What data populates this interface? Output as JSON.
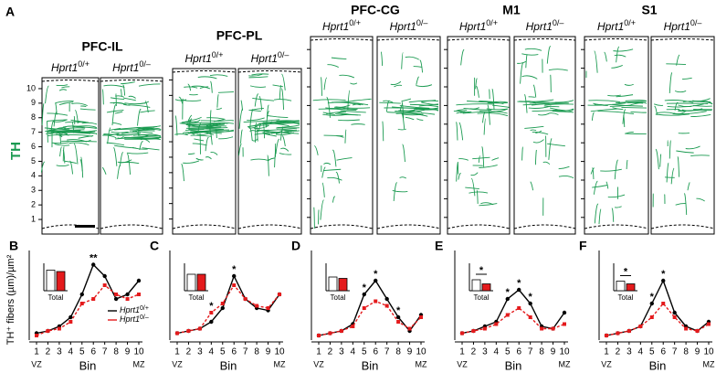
{
  "panel_a": {
    "label": "A",
    "side_label": "TH",
    "bins": [
      1,
      2,
      3,
      4,
      5,
      6,
      7,
      8,
      9,
      10
    ],
    "regions": [
      {
        "title": "PFC-IL",
        "genotypes": [
          {
            "gene": "Hprt1",
            "allele": "0/+"
          },
          {
            "gene": "Hprt1",
            "allele": "0/–"
          }
        ]
      },
      {
        "title": "PFC-PL",
        "genotypes": [
          {
            "gene": "Hprt1",
            "allele": "0/+"
          },
          {
            "gene": "Hprt1",
            "allele": "0/–"
          }
        ]
      },
      {
        "title": "PFC-CG",
        "genotypes": [
          {
            "gene": "Hprt1",
            "allele": "0/+"
          },
          {
            "gene": "Hprt1",
            "allele": "0/–"
          }
        ]
      },
      {
        "title": "M1",
        "genotypes": [
          {
            "gene": "Hprt1",
            "allele": "0/+"
          },
          {
            "gene": "Hprt1",
            "allele": "0/–"
          }
        ]
      },
      {
        "title": "S1",
        "genotypes": [
          {
            "gene": "Hprt1",
            "allele": "0/+"
          },
          {
            "gene": "Hprt1",
            "allele": "0/–"
          }
        ]
      }
    ]
  },
  "y_label": "TH⁺ fibers (µm)/µm²",
  "chart_data": [
    {
      "type": "line",
      "label": "B",
      "x_label": "Bin",
      "categories": [
        1,
        2,
        3,
        4,
        5,
        6,
        7,
        8,
        9,
        10
      ],
      "ends": [
        "VZ",
        "MZ"
      ],
      "ylim": [
        0,
        0.18
      ],
      "series": [
        {
          "name": "Hprt1",
          "allele": "0/+",
          "color": "#000000",
          "values": [
            0.015,
            0.02,
            0.03,
            0.05,
            0.1,
            0.165,
            0.14,
            0.09,
            0.1,
            0.13
          ]
        },
        {
          "name": "Hprt1",
          "allele": "0/–",
          "color": "#e41a1c",
          "values": [
            0.01,
            0.02,
            0.025,
            0.04,
            0.08,
            0.09,
            0.12,
            0.1,
            0.09,
            0.1
          ]
        }
      ],
      "annotations": [
        {
          "text": "**",
          "x": 6
        }
      ],
      "inset": {
        "label": "Total",
        "ylim": [
          0,
          0.1
        ],
        "values": [
          0.075,
          0.07
        ],
        "colors": [
          "#ffffff",
          "#e41a1c"
        ]
      }
    },
    {
      "type": "line",
      "label": "C",
      "x_label": "Bin",
      "categories": [
        1,
        2,
        3,
        4,
        5,
        6,
        7,
        8,
        9,
        10
      ],
      "ends": [
        "VZ",
        "MZ"
      ],
      "ylim": [
        0,
        0.18
      ],
      "series": [
        {
          "name": "Hprt1",
          "allele": "0/+",
          "color": "#000000",
          "values": [
            0.015,
            0.02,
            0.025,
            0.04,
            0.07,
            0.14,
            0.09,
            0.07,
            0.065,
            0.1
          ]
        },
        {
          "name": "Hprt1",
          "allele": "0/–",
          "color": "#e41a1c",
          "values": [
            0.015,
            0.02,
            0.025,
            0.06,
            0.08,
            0.12,
            0.09,
            0.075,
            0.07,
            0.1
          ]
        }
      ],
      "annotations": [
        {
          "text": "*",
          "x": 4
        },
        {
          "text": "*",
          "x": 6
        }
      ],
      "inset": {
        "label": "Total",
        "ylim": [
          0,
          0.1
        ],
        "values": [
          0.06,
          0.06
        ],
        "colors": [
          "#ffffff",
          "#e41a1c"
        ]
      }
    },
    {
      "type": "line",
      "label": "D",
      "x_label": "Bin",
      "categories": [
        1,
        2,
        3,
        4,
        5,
        6,
        7,
        8,
        9,
        10
      ],
      "ends": [
        "VZ",
        "MZ"
      ],
      "ylim": [
        0,
        0.18
      ],
      "series": [
        {
          "name": "Hprt1",
          "allele": "0/+",
          "color": "#000000",
          "values": [
            0.01,
            0.015,
            0.02,
            0.035,
            0.1,
            0.13,
            0.09,
            0.05,
            0.02,
            0.055
          ]
        },
        {
          "name": "Hprt1",
          "allele": "0/–",
          "color": "#e41a1c",
          "values": [
            0.01,
            0.015,
            0.02,
            0.03,
            0.07,
            0.085,
            0.075,
            0.04,
            0.025,
            0.05
          ]
        }
      ],
      "annotations": [
        {
          "text": "*",
          "x": 5
        },
        {
          "text": "*",
          "x": 6
        },
        {
          "text": "*",
          "x": 8
        }
      ],
      "inset": {
        "label": "Total",
        "ylim": [
          0,
          0.1
        ],
        "values": [
          0.05,
          0.045
        ],
        "colors": [
          "#ffffff",
          "#e41a1c"
        ]
      }
    },
    {
      "type": "line",
      "label": "E",
      "x_label": "Bin",
      "categories": [
        1,
        2,
        3,
        4,
        5,
        6,
        7,
        8,
        9,
        10
      ],
      "ends": [
        "VZ",
        "MZ"
      ],
      "ylim": [
        0,
        0.18
      ],
      "series": [
        {
          "name": "Hprt1",
          "allele": "0/+",
          "color": "#000000",
          "values": [
            0.015,
            0.02,
            0.03,
            0.04,
            0.09,
            0.11,
            0.08,
            0.03,
            0.025,
            0.06
          ]
        },
        {
          "name": "Hprt1",
          "allele": "0/–",
          "color": "#e41a1c",
          "values": [
            0.015,
            0.02,
            0.025,
            0.035,
            0.055,
            0.07,
            0.05,
            0.025,
            0.025,
            0.035
          ]
        }
      ],
      "annotations": [
        {
          "text": "*",
          "x": 5
        },
        {
          "text": "*",
          "x": 6
        },
        {
          "text": "*",
          "x": 7
        }
      ],
      "inset": {
        "label": "Total",
        "annotation": "*",
        "ylim": [
          0,
          0.1
        ],
        "values": [
          0.04,
          0.025
        ],
        "colors": [
          "#ffffff",
          "#e41a1c"
        ]
      }
    },
    {
      "type": "line",
      "label": "F",
      "x_label": "Bin",
      "categories": [
        1,
        2,
        3,
        4,
        5,
        6,
        7,
        8,
        9,
        10
      ],
      "ends": [
        "VZ",
        "MZ"
      ],
      "ylim": [
        0,
        0.18
      ],
      "series": [
        {
          "name": "Hprt1",
          "allele": "0/+",
          "color": "#000000",
          "values": [
            0.01,
            0.015,
            0.02,
            0.03,
            0.08,
            0.13,
            0.06,
            0.03,
            0.02,
            0.04
          ]
        },
        {
          "name": "Hprt1",
          "allele": "0/–",
          "color": "#e41a1c",
          "values": [
            0.01,
            0.015,
            0.02,
            0.03,
            0.05,
            0.08,
            0.05,
            0.025,
            0.02,
            0.035
          ]
        }
      ],
      "annotations": [
        {
          "text": "*",
          "x": 5
        },
        {
          "text": "*",
          "x": 6
        }
      ],
      "inset": {
        "label": "Total",
        "annotation": "*",
        "ylim": [
          0,
          0.1
        ],
        "values": [
          0.035,
          0.025
        ],
        "colors": [
          "#ffffff",
          "#e41a1c"
        ]
      }
    }
  ]
}
